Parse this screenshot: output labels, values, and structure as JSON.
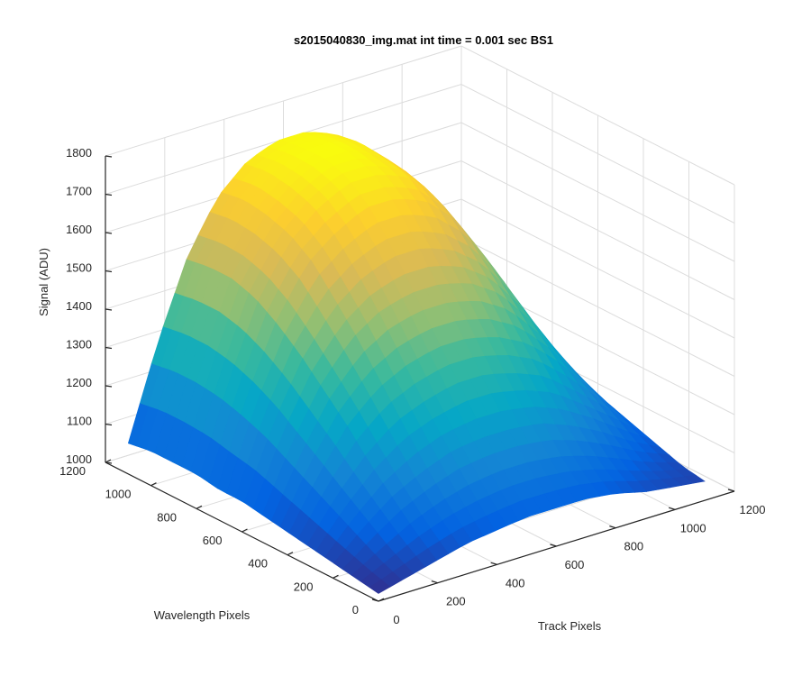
{
  "chart_data": {
    "type": "surface",
    "title": "s2015040830_img.mat int time = 0.001 sec   BS1",
    "xlabel": "Track Pixels",
    "ylabel": "Wavelength Pixels",
    "zlabel": "Signal (ADU)",
    "xlim": [
      0,
      1200
    ],
    "ylim": [
      0,
      1200
    ],
    "zlim": [
      1000,
      1800
    ],
    "xticks": [
      0,
      200,
      400,
      600,
      800,
      1000,
      1200
    ],
    "yticks": [
      0,
      200,
      400,
      600,
      800,
      1000,
      1200
    ],
    "zticks": [
      1000,
      1100,
      1200,
      1300,
      1400,
      1500,
      1600,
      1700,
      1800
    ],
    "xtick_labels": [
      "0",
      "200",
      "400",
      "600",
      "800",
      "1000",
      "1200"
    ],
    "ytick_labels": [
      "0",
      "200",
      "400",
      "600",
      "800",
      "1000",
      "1200"
    ],
    "ztick_labels": [
      "1000",
      "1100",
      "1200",
      "1300",
      "1400",
      "1500",
      "1600",
      "1700",
      "1800"
    ],
    "grid": true,
    "colormap": "parula",
    "colormap_stops": [
      "#352a87",
      "#0363e1",
      "#1485d4",
      "#06a7c6",
      "#38b99e",
      "#92bf73",
      "#d9ba56",
      "#fcce2e",
      "#f9fb0e"
    ],
    "surface": {
      "track_pixels": [
        0,
        100,
        200,
        300,
        400,
        500,
        600,
        700,
        800,
        900,
        1000,
        1100
      ],
      "wavelength_pixels": [
        0,
        100,
        200,
        300,
        400,
        500,
        600,
        700,
        800,
        900,
        1000,
        1100
      ],
      "signal_adu": [
        [
          1020,
          1040,
          1060,
          1080,
          1090,
          1100,
          1100,
          1100,
          1090,
          1070,
          1060,
          1050
        ],
        [
          1030,
          1070,
          1110,
          1140,
          1160,
          1170,
          1170,
          1160,
          1140,
          1110,
          1080,
          1060
        ],
        [
          1040,
          1110,
          1170,
          1210,
          1240,
          1250,
          1250,
          1240,
          1210,
          1170,
          1120,
          1080
        ],
        [
          1050,
          1150,
          1230,
          1290,
          1320,
          1340,
          1340,
          1320,
          1290,
          1230,
          1170,
          1100
        ],
        [
          1060,
          1190,
          1300,
          1370,
          1410,
          1430,
          1430,
          1410,
          1370,
          1300,
          1210,
          1120
        ],
        [
          1070,
          1230,
          1360,
          1450,
          1500,
          1520,
          1520,
          1500,
          1450,
          1360,
          1250,
          1140
        ],
        [
          1080,
          1270,
          1420,
          1520,
          1580,
          1610,
          1610,
          1580,
          1520,
          1420,
          1290,
          1150
        ],
        [
          1080,
          1300,
          1470,
          1590,
          1650,
          1690,
          1690,
          1660,
          1590,
          1470,
          1320,
          1160
        ],
        [
          1090,
          1320,
          1510,
          1630,
          1700,
          1740,
          1740,
          1710,
          1630,
          1510,
          1340,
          1170
        ],
        [
          1090,
          1330,
          1530,
          1650,
          1720,
          1760,
          1760,
          1720,
          1650,
          1520,
          1350,
          1170
        ],
        [
          1090,
          1330,
          1530,
          1660,
          1730,
          1760,
          1760,
          1730,
          1660,
          1530,
          1350,
          1170
        ],
        [
          1080,
          1320,
          1520,
          1650,
          1720,
          1750,
          1750,
          1720,
          1650,
          1520,
          1340,
          1160
        ]
      ]
    }
  }
}
